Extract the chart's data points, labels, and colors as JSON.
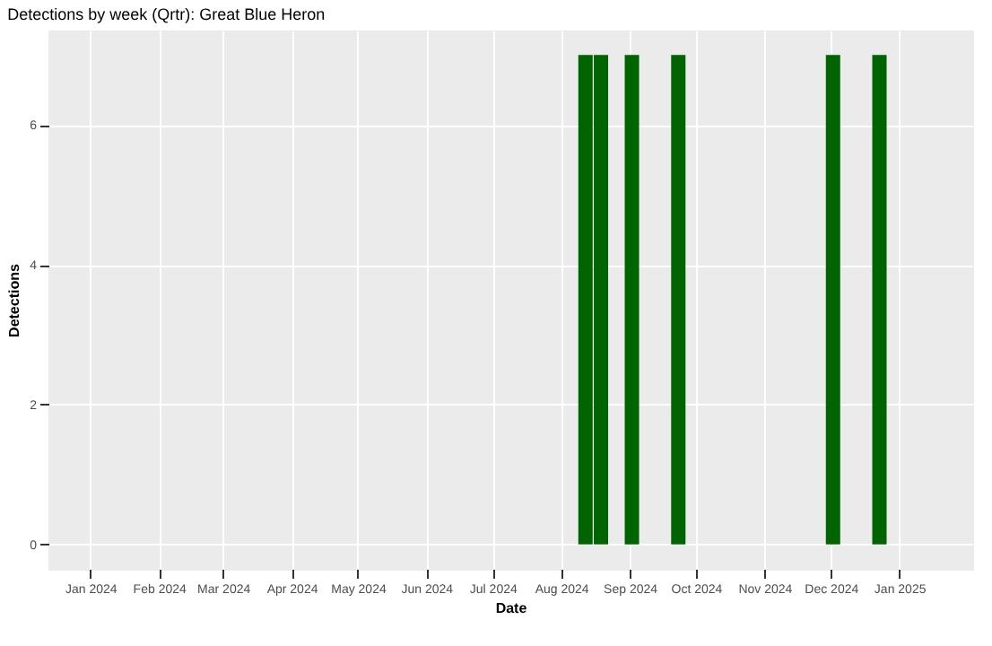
{
  "chart_data": {
    "type": "bar",
    "title": "Detections by week (Qrtr): Great Blue Heron",
    "xlabel": "Date",
    "ylabel": "Detections",
    "x": [
      "2024-08-12",
      "2024-08-19",
      "2024-09-02",
      "2024-09-23",
      "2024-12-02",
      "2024-12-23"
    ],
    "values": [
      7,
      7,
      7,
      7,
      7,
      7
    ],
    "color": "#006400",
    "xlim": [
      "2023-12-13",
      "2025-02-03"
    ],
    "xticks": [
      {
        "value": "2024-01-01",
        "label": "Jan 2024"
      },
      {
        "value": "2024-02-01",
        "label": "Feb 2024"
      },
      {
        "value": "2024-03-01",
        "label": "Mar 2024"
      },
      {
        "value": "2024-04-01",
        "label": "Apr 2024"
      },
      {
        "value": "2024-05-01",
        "label": "May 2024"
      },
      {
        "value": "2024-06-01",
        "label": "Jun 2024"
      },
      {
        "value": "2024-07-01",
        "label": "Jul 2024"
      },
      {
        "value": "2024-08-01",
        "label": "Aug 2024"
      },
      {
        "value": "2024-09-01",
        "label": "Sep 2024"
      },
      {
        "value": "2024-10-01",
        "label": "Oct 2024"
      },
      {
        "value": "2024-11-01",
        "label": "Nov 2024"
      },
      {
        "value": "2024-12-01",
        "label": "Dec 2024"
      },
      {
        "value": "2025-01-01",
        "label": "Jan 2025"
      }
    ],
    "ylim": [
      -0.35,
      7.35
    ],
    "yticks": [
      0,
      2,
      4,
      6
    ],
    "grid": true
  }
}
